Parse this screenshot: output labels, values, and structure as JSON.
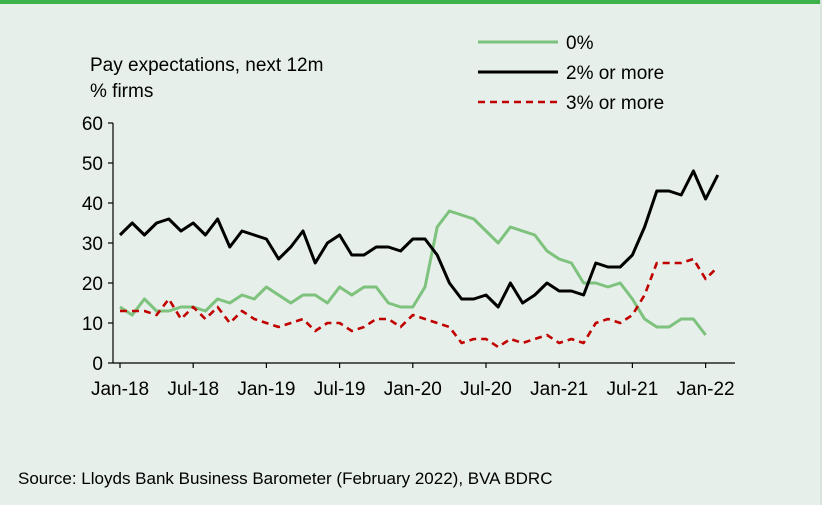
{
  "chart_data": {
    "type": "line",
    "title": "Pay expectations, next 12m",
    "ylabel": "% firms",
    "ylim": [
      0,
      60
    ],
    "yticks": [
      0,
      10,
      20,
      30,
      40,
      50,
      60
    ],
    "xticks": [
      "Jan-18",
      "Jul-18",
      "Jan-19",
      "Jul-19",
      "Jan-20",
      "Jul-20",
      "Jan-21",
      "Jul-21",
      "Jan-22"
    ],
    "legend_position": "top-right",
    "grid": false,
    "months": [
      "Jan-18",
      "Feb-18",
      "Mar-18",
      "Apr-18",
      "May-18",
      "Jun-18",
      "Jul-18",
      "Aug-18",
      "Sep-18",
      "Oct-18",
      "Nov-18",
      "Dec-18",
      "Jan-19",
      "Feb-19",
      "Mar-19",
      "Apr-19",
      "May-19",
      "Jun-19",
      "Jul-19",
      "Aug-19",
      "Sep-19",
      "Oct-19",
      "Nov-19",
      "Dec-19",
      "Jan-20",
      "Feb-20",
      "Mar-20",
      "Apr-20",
      "May-20",
      "Jun-20",
      "Jul-20",
      "Aug-20",
      "Sep-20",
      "Oct-20",
      "Nov-20",
      "Dec-20",
      "Jan-21",
      "Feb-21",
      "Mar-21",
      "Apr-21",
      "May-21",
      "Jun-21",
      "Jul-21",
      "Aug-21",
      "Sep-21",
      "Oct-21",
      "Nov-21",
      "Dec-21",
      "Jan-22",
      "Feb-22"
    ],
    "series": [
      {
        "name": "0%",
        "color": "#7dc27d",
        "dash": "solid",
        "values": [
          14,
          12,
          16,
          13,
          13,
          14,
          14,
          13,
          16,
          15,
          17,
          16,
          19,
          17,
          15,
          17,
          17,
          15,
          19,
          17,
          19,
          19,
          15,
          14,
          14,
          19,
          34,
          38,
          37,
          36,
          33,
          30,
          34,
          33,
          32,
          28,
          26,
          25,
          20,
          20,
          19,
          20,
          16,
          11,
          9,
          9,
          11,
          11,
          7,
          null
        ]
      },
      {
        "name": "2% or more",
        "color": "#000000",
        "dash": "solid",
        "values": [
          32,
          35,
          32,
          35,
          36,
          33,
          35,
          32,
          36,
          29,
          33,
          32,
          31,
          26,
          29,
          33,
          25,
          30,
          32,
          27,
          27,
          29,
          29,
          28,
          31,
          31,
          27,
          20,
          16,
          16,
          17,
          14,
          20,
          15,
          17,
          20,
          18,
          18,
          17,
          25,
          24,
          24,
          27,
          34,
          43,
          43,
          42,
          48,
          41,
          47
        ]
      },
      {
        "name": "3% or more",
        "color": "#c00000",
        "dash": "dashed",
        "values": [
          13,
          13,
          13,
          12,
          16,
          11,
          14,
          11,
          14,
          10,
          13,
          11,
          10,
          9,
          10,
          11,
          8,
          10,
          10,
          8,
          9,
          11,
          11,
          9,
          12,
          11,
          10,
          9,
          5,
          6,
          6,
          4,
          6,
          5,
          6,
          7,
          5,
          6,
          5,
          10,
          11,
          10,
          12,
          17,
          25,
          25,
          25,
          26,
          21,
          24
        ]
      }
    ]
  },
  "source": "Source: Lloyds Bank Business Barometer (February 2022), BVA BDRC"
}
